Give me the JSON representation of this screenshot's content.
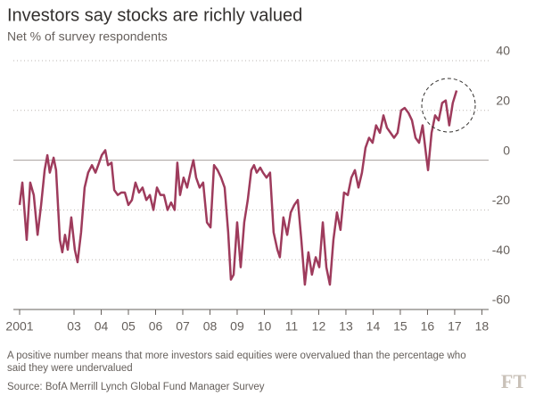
{
  "chart_data": {
    "type": "line",
    "title": "Investors say stocks are richly valued",
    "subtitle": "Net % of survey respondents",
    "note": "A positive number means that more investors said equities were overvalued than the percentage who said they were undervalued",
    "source": "Source: BofA Merrill Lynch Global Fund Manager Survey",
    "logo": "FT",
    "xlim": [
      2000.77,
      2018.15
    ],
    "xticks": [
      2001,
      {
        "value": 2003,
        "label": "03"
      },
      {
        "value": 2004,
        "label": "04"
      },
      {
        "value": 2005,
        "label": "05"
      },
      {
        "value": 2006,
        "label": "06"
      },
      {
        "value": 2007,
        "label": "07"
      },
      {
        "value": 2008,
        "label": "08"
      },
      {
        "value": 2009,
        "label": "09"
      },
      {
        "value": 2010,
        "label": "10"
      },
      {
        "value": 2011,
        "label": "11"
      },
      {
        "value": 2012,
        "label": "12"
      },
      {
        "value": 2013,
        "label": "13"
      },
      {
        "value": 2014,
        "label": "14"
      },
      {
        "value": 2015,
        "label": "15"
      },
      {
        "value": 2016,
        "label": "16"
      },
      {
        "value": 2017,
        "label": "17"
      },
      {
        "value": 2018,
        "label": "18"
      }
    ],
    "ylim": [
      -60,
      40
    ],
    "yticks": [
      40,
      20,
      0,
      -20,
      -40,
      -60
    ],
    "grid": true,
    "x": [
      2001.0,
      2001.1,
      2001.26,
      2001.39,
      2001.52,
      2001.66,
      2001.79,
      2001.92,
      2002.02,
      2002.11,
      2002.25,
      2002.34,
      2002.48,
      2002.57,
      2002.67,
      2002.77,
      2002.9,
      2003.03,
      2003.13,
      2003.26,
      2003.39,
      2003.52,
      2003.66,
      2003.79,
      2003.89,
      2004.02,
      2004.15,
      2004.25,
      2004.38,
      2004.48,
      2004.61,
      2004.74,
      2004.87,
      2005.0,
      2005.13,
      2005.26,
      2005.39,
      2005.52,
      2005.66,
      2005.79,
      2005.92,
      2006.05,
      2006.18,
      2006.31,
      2006.44,
      2006.57,
      2006.7,
      2006.8,
      2006.9,
      2007.03,
      2007.16,
      2007.3,
      2007.39,
      2007.49,
      2007.62,
      2007.75,
      2007.89,
      2008.02,
      2008.15,
      2008.28,
      2008.41,
      2008.54,
      2008.67,
      2008.77,
      2008.87,
      2009.0,
      2009.13,
      2009.26,
      2009.39,
      2009.52,
      2009.62,
      2009.72,
      2009.85,
      2009.95,
      2010.08,
      2010.21,
      2010.34,
      2010.48,
      2010.57,
      2010.7,
      2010.84,
      2010.97,
      2011.1,
      2011.23,
      2011.36,
      2011.49,
      2011.62,
      2011.75,
      2011.89,
      2012.02,
      2012.15,
      2012.28,
      2012.41,
      2012.54,
      2012.67,
      2012.8,
      2012.93,
      2013.07,
      2013.2,
      2013.33,
      2013.46,
      2013.59,
      2013.72,
      2013.85,
      2013.98,
      2014.11,
      2014.25,
      2014.38,
      2014.51,
      2014.64,
      2014.77,
      2014.9,
      2015.03,
      2015.16,
      2015.3,
      2015.43,
      2015.56,
      2015.69,
      2015.82,
      2015.95,
      2016.02,
      2016.15,
      2016.28,
      2016.41,
      2016.54,
      2016.67,
      2016.8,
      2016.93,
      2017.07
    ],
    "series": [
      {
        "color": "#9e3b5c",
        "values": [
          -18,
          -9,
          -32,
          -9,
          -14,
          -30,
          -18,
          -4,
          2,
          -5,
          1,
          -4,
          -32,
          -37,
          -30,
          -36,
          -23,
          -36,
          -41,
          -29,
          -11,
          -5,
          -2,
          -5,
          -2,
          2,
          4,
          -2,
          -1,
          -12,
          -14,
          -13,
          -13,
          -18,
          -16,
          -9,
          -13,
          -11,
          -16,
          -14,
          -20,
          -11,
          -14,
          -14,
          -20,
          -17,
          -20,
          -1,
          -14,
          -7,
          -11,
          -4,
          0,
          -7,
          -11,
          -9,
          -25,
          -27,
          -2,
          -4,
          -7,
          -11,
          -29,
          -48,
          -46,
          -25,
          -43,
          -25,
          -16,
          -4,
          -2,
          -5,
          -3,
          -5,
          -7,
          -5,
          -29,
          -36,
          -39,
          -23,
          -30,
          -21,
          -18,
          -16,
          -32,
          -50,
          -37,
          -46,
          -39,
          -43,
          -25,
          -43,
          -50,
          -32,
          -21,
          -28,
          -13,
          -14,
          -7,
          -4,
          -11,
          -5,
          5,
          9,
          7,
          14,
          11,
          18,
          13,
          11,
          9,
          11,
          20,
          21,
          19,
          16,
          9,
          7,
          14,
          2,
          -4,
          11,
          18,
          16,
          23,
          24,
          14,
          23,
          28
        ]
      }
    ]
  }
}
